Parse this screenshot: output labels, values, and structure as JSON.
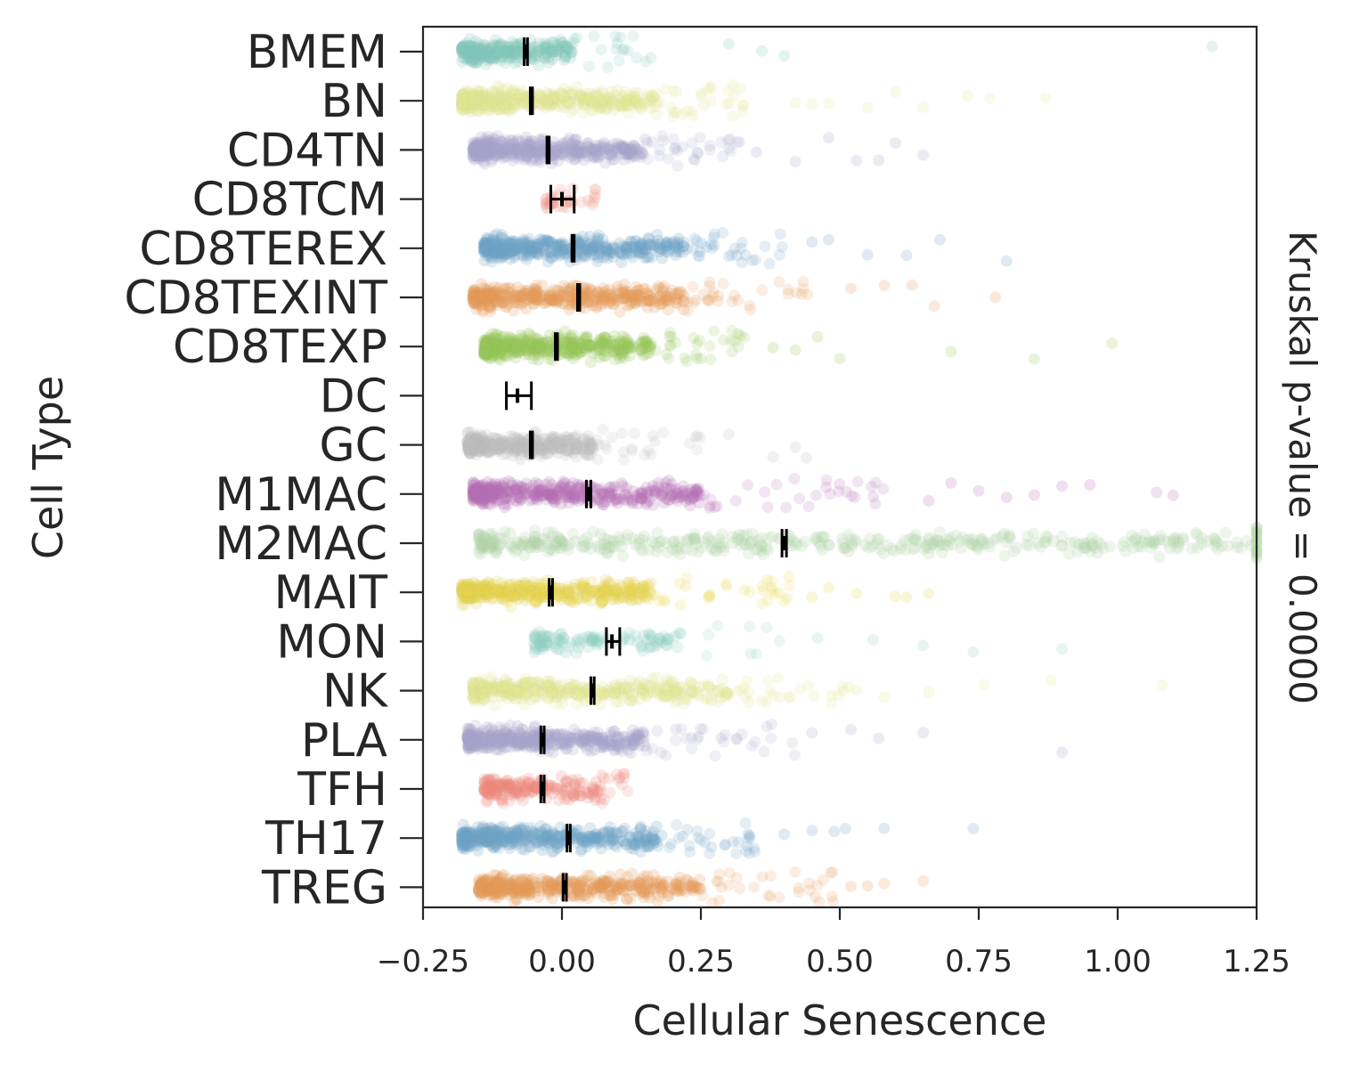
{
  "chart_data": {
    "type": "strip",
    "xlabel": "Cellular Senescence",
    "ylabel": "Cell Type",
    "annotation": "Kruskal p-value = 0.0000",
    "xlim": [
      -0.25,
      1.25
    ],
    "xticks": [
      -0.25,
      0.0,
      0.25,
      0.5,
      0.75,
      1.0,
      1.25
    ],
    "xtick_labels": [
      "−0.25",
      "0.00",
      "0.25",
      "0.50",
      "0.75",
      "1.00",
      "1.25"
    ],
    "grid": false,
    "categories": [
      {
        "name": "BMEM",
        "color": "#7fc7b9",
        "mean": -0.065,
        "ci": [
          -0.068,
          -0.062
        ],
        "core": [
          -0.18,
          0.02
        ],
        "tail": 0.18,
        "outliers": [
          0.3,
          0.36,
          0.4,
          1.17
        ],
        "density": 0.6
      },
      {
        "name": "BN",
        "color": "#e3e690",
        "mean": -0.055,
        "ci": [
          -0.057,
          -0.053
        ],
        "core": [
          -0.18,
          0.17
        ],
        "tail": 0.33,
        "outliers": [
          0.42,
          0.45,
          0.48,
          0.55,
          0.6,
          0.65,
          0.73,
          0.77,
          0.87
        ],
        "density": 1.0
      },
      {
        "name": "CD4TN",
        "color": "#a9a6cc",
        "mean": -0.025,
        "ci": [
          -0.027,
          -0.023
        ],
        "core": [
          -0.16,
          0.15
        ],
        "tail": 0.32,
        "outliers": [
          0.35,
          0.42,
          0.48,
          0.53,
          0.57,
          0.6,
          0.65
        ],
        "density": 1.0
      },
      {
        "name": "CD8TCM",
        "color": "#f09a8c",
        "mean": 0.0,
        "ci": [
          -0.02,
          0.022
        ],
        "core": [
          -0.03,
          0.06
        ],
        "tail": 0.06,
        "outliers": [],
        "density": 0.08
      },
      {
        "name": "CD8TEREX",
        "color": "#6ea2c9",
        "mean": 0.02,
        "ci": [
          0.018,
          0.022
        ],
        "core": [
          -0.14,
          0.22
        ],
        "tail": 0.4,
        "outliers": [
          0.45,
          0.48,
          0.55,
          0.62,
          0.68,
          0.8
        ],
        "density": 1.0
      },
      {
        "name": "CD8TEXINT",
        "color": "#ea9b56",
        "mean": 0.03,
        "ci": [
          0.028,
          0.032
        ],
        "core": [
          -0.16,
          0.22
        ],
        "tail": 0.45,
        "outliers": [
          0.52,
          0.58,
          0.63,
          0.67,
          0.78
        ],
        "density": 1.0
      },
      {
        "name": "CD8TEXP",
        "color": "#98c756",
        "mean": -0.01,
        "ci": [
          -0.012,
          -0.008
        ],
        "core": [
          -0.14,
          0.16
        ],
        "tail": 0.33,
        "outliers": [
          0.38,
          0.42,
          0.46,
          0.5,
          0.7,
          0.85,
          0.99
        ],
        "density": 1.0
      },
      {
        "name": "DC",
        "color": "#dcdcdc",
        "mean": -0.08,
        "ci": [
          -0.1,
          -0.055
        ],
        "core": [
          -0.09,
          -0.06
        ],
        "tail": -0.06,
        "outliers": [],
        "density": 0.0
      },
      {
        "name": "GC",
        "color": "#bfbfbf",
        "mean": -0.055,
        "ci": [
          -0.057,
          -0.053
        ],
        "core": [
          -0.17,
          0.06
        ],
        "tail": 0.25,
        "outliers": [
          0.3,
          0.38,
          0.42,
          0.44
        ],
        "density": 0.8
      },
      {
        "name": "M1MAC",
        "color": "#b56eb5",
        "mean": 0.048,
        "ci": [
          0.044,
          0.052
        ],
        "core": [
          -0.16,
          0.25
        ],
        "tail": 0.58,
        "outliers": [
          0.66,
          0.7,
          0.75,
          0.8,
          0.85,
          0.9,
          0.95,
          1.07,
          1.1
        ],
        "density": 1.0
      },
      {
        "name": "M2MAC",
        "color": "#b3d7a8",
        "mean": 0.4,
        "ci": [
          0.396,
          0.404
        ],
        "core": [
          -0.15,
          1.25
        ],
        "tail": 1.25,
        "outliers": [],
        "density": 1.0
      },
      {
        "name": "MAIT",
        "color": "#e8d84e",
        "mean": -0.02,
        "ci": [
          -0.023,
          -0.017
        ],
        "core": [
          -0.18,
          0.16
        ],
        "tail": 0.42,
        "outliers": [
          0.45,
          0.48,
          0.53,
          0.6,
          0.62,
          0.66
        ],
        "density": 1.0
      },
      {
        "name": "MON",
        "color": "#8dd3c4",
        "mean": 0.09,
        "ci": [
          0.08,
          0.104
        ],
        "core": [
          -0.05,
          0.23
        ],
        "tail": 0.4,
        "outliers": [
          0.46,
          0.56,
          0.65,
          0.74,
          0.9
        ],
        "density": 0.25
      },
      {
        "name": "NK",
        "color": "#e3e690",
        "mean": 0.055,
        "ci": [
          0.052,
          0.058
        ],
        "core": [
          -0.16,
          0.3
        ],
        "tail": 0.55,
        "outliers": [
          0.58,
          0.66,
          0.76,
          0.88,
          1.08
        ],
        "density": 0.9
      },
      {
        "name": "PLA",
        "color": "#a9a6cc",
        "mean": -0.035,
        "ci": [
          -0.038,
          -0.032
        ],
        "core": [
          -0.17,
          0.15
        ],
        "tail": 0.42,
        "outliers": [
          0.45,
          0.52,
          0.57,
          0.65,
          0.9
        ],
        "density": 1.0
      },
      {
        "name": "TFH",
        "color": "#f0877a",
        "mean": -0.035,
        "ci": [
          -0.038,
          -0.032
        ],
        "core": [
          -0.14,
          0.07
        ],
        "tail": 0.12,
        "outliers": [],
        "density": 0.45
      },
      {
        "name": "TH17",
        "color": "#6ea2c9",
        "mean": 0.012,
        "ci": [
          0.009,
          0.015
        ],
        "core": [
          -0.18,
          0.18
        ],
        "tail": 0.35,
        "outliers": [
          0.4,
          0.45,
          0.49,
          0.51,
          0.58,
          0.74
        ],
        "density": 1.0
      },
      {
        "name": "TREG",
        "color": "#ea9b56",
        "mean": 0.005,
        "ci": [
          0.002,
          0.008
        ],
        "core": [
          -0.15,
          0.25
        ],
        "tail": 0.5,
        "outliers": [
          0.52,
          0.55,
          0.58,
          0.65
        ],
        "density": 1.0
      }
    ]
  }
}
